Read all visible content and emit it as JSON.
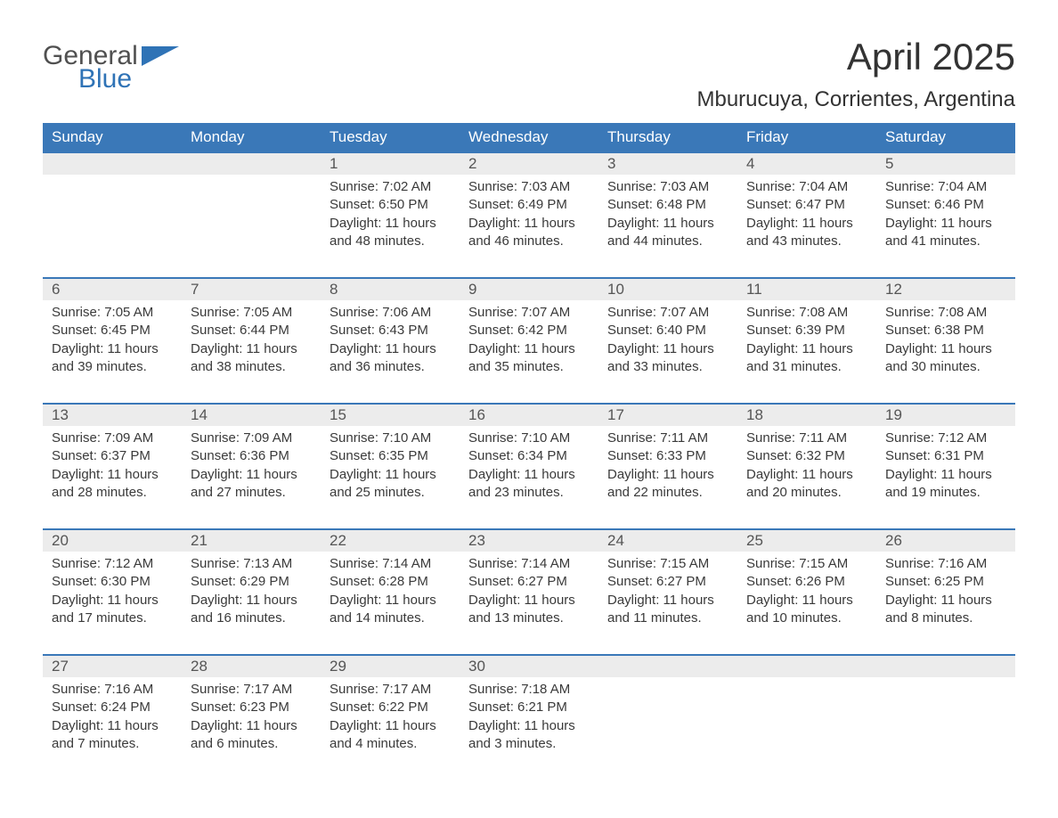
{
  "brand": {
    "word1": "General",
    "word2": "Blue",
    "accent_color": "#2f73b6",
    "text_color": "#505050"
  },
  "title": "April 2025",
  "location": "Mburucuya, Corrientes, Argentina",
  "colors": {
    "header_bg": "#3a78b8",
    "header_text": "#ffffff",
    "daynum_bg": "#ececec",
    "row_border": "#3a78b8",
    "body_text": "#3a3a3a",
    "background": "#ffffff"
  },
  "typography": {
    "title_fontsize": 42,
    "location_fontsize": 24,
    "header_fontsize": 17,
    "cell_fontsize": 15
  },
  "layout": {
    "columns": 7,
    "weeks": 5
  },
  "day_headers": [
    "Sunday",
    "Monday",
    "Tuesday",
    "Wednesday",
    "Thursday",
    "Friday",
    "Saturday"
  ],
  "weeks": [
    {
      "nums": [
        "",
        "",
        "1",
        "2",
        "3",
        "4",
        "5"
      ],
      "cells": [
        "",
        "",
        "Sunrise: 7:02 AM\nSunset: 6:50 PM\nDaylight: 11 hours and 48 minutes.",
        "Sunrise: 7:03 AM\nSunset: 6:49 PM\nDaylight: 11 hours and 46 minutes.",
        "Sunrise: 7:03 AM\nSunset: 6:48 PM\nDaylight: 11 hours and 44 minutes.",
        "Sunrise: 7:04 AM\nSunset: 6:47 PM\nDaylight: 11 hours and 43 minutes.",
        "Sunrise: 7:04 AM\nSunset: 6:46 PM\nDaylight: 11 hours and 41 minutes."
      ]
    },
    {
      "nums": [
        "6",
        "7",
        "8",
        "9",
        "10",
        "11",
        "12"
      ],
      "cells": [
        "Sunrise: 7:05 AM\nSunset: 6:45 PM\nDaylight: 11 hours and 39 minutes.",
        "Sunrise: 7:05 AM\nSunset: 6:44 PM\nDaylight: 11 hours and 38 minutes.",
        "Sunrise: 7:06 AM\nSunset: 6:43 PM\nDaylight: 11 hours and 36 minutes.",
        "Sunrise: 7:07 AM\nSunset: 6:42 PM\nDaylight: 11 hours and 35 minutes.",
        "Sunrise: 7:07 AM\nSunset: 6:40 PM\nDaylight: 11 hours and 33 minutes.",
        "Sunrise: 7:08 AM\nSunset: 6:39 PM\nDaylight: 11 hours and 31 minutes.",
        "Sunrise: 7:08 AM\nSunset: 6:38 PM\nDaylight: 11 hours and 30 minutes."
      ]
    },
    {
      "nums": [
        "13",
        "14",
        "15",
        "16",
        "17",
        "18",
        "19"
      ],
      "cells": [
        "Sunrise: 7:09 AM\nSunset: 6:37 PM\nDaylight: 11 hours and 28 minutes.",
        "Sunrise: 7:09 AM\nSunset: 6:36 PM\nDaylight: 11 hours and 27 minutes.",
        "Sunrise: 7:10 AM\nSunset: 6:35 PM\nDaylight: 11 hours and 25 minutes.",
        "Sunrise: 7:10 AM\nSunset: 6:34 PM\nDaylight: 11 hours and 23 minutes.",
        "Sunrise: 7:11 AM\nSunset: 6:33 PM\nDaylight: 11 hours and 22 minutes.",
        "Sunrise: 7:11 AM\nSunset: 6:32 PM\nDaylight: 11 hours and 20 minutes.",
        "Sunrise: 7:12 AM\nSunset: 6:31 PM\nDaylight: 11 hours and 19 minutes."
      ]
    },
    {
      "nums": [
        "20",
        "21",
        "22",
        "23",
        "24",
        "25",
        "26"
      ],
      "cells": [
        "Sunrise: 7:12 AM\nSunset: 6:30 PM\nDaylight: 11 hours and 17 minutes.",
        "Sunrise: 7:13 AM\nSunset: 6:29 PM\nDaylight: 11 hours and 16 minutes.",
        "Sunrise: 7:14 AM\nSunset: 6:28 PM\nDaylight: 11 hours and 14 minutes.",
        "Sunrise: 7:14 AM\nSunset: 6:27 PM\nDaylight: 11 hours and 13 minutes.",
        "Sunrise: 7:15 AM\nSunset: 6:27 PM\nDaylight: 11 hours and 11 minutes.",
        "Sunrise: 7:15 AM\nSunset: 6:26 PM\nDaylight: 11 hours and 10 minutes.",
        "Sunrise: 7:16 AM\nSunset: 6:25 PM\nDaylight: 11 hours and 8 minutes."
      ]
    },
    {
      "nums": [
        "27",
        "28",
        "29",
        "30",
        "",
        "",
        ""
      ],
      "cells": [
        "Sunrise: 7:16 AM\nSunset: 6:24 PM\nDaylight: 11 hours and 7 minutes.",
        "Sunrise: 7:17 AM\nSunset: 6:23 PM\nDaylight: 11 hours and 6 minutes.",
        "Sunrise: 7:17 AM\nSunset: 6:22 PM\nDaylight: 11 hours and 4 minutes.",
        "Sunrise: 7:18 AM\nSunset: 6:21 PM\nDaylight: 11 hours and 3 minutes.",
        "",
        "",
        ""
      ]
    }
  ]
}
